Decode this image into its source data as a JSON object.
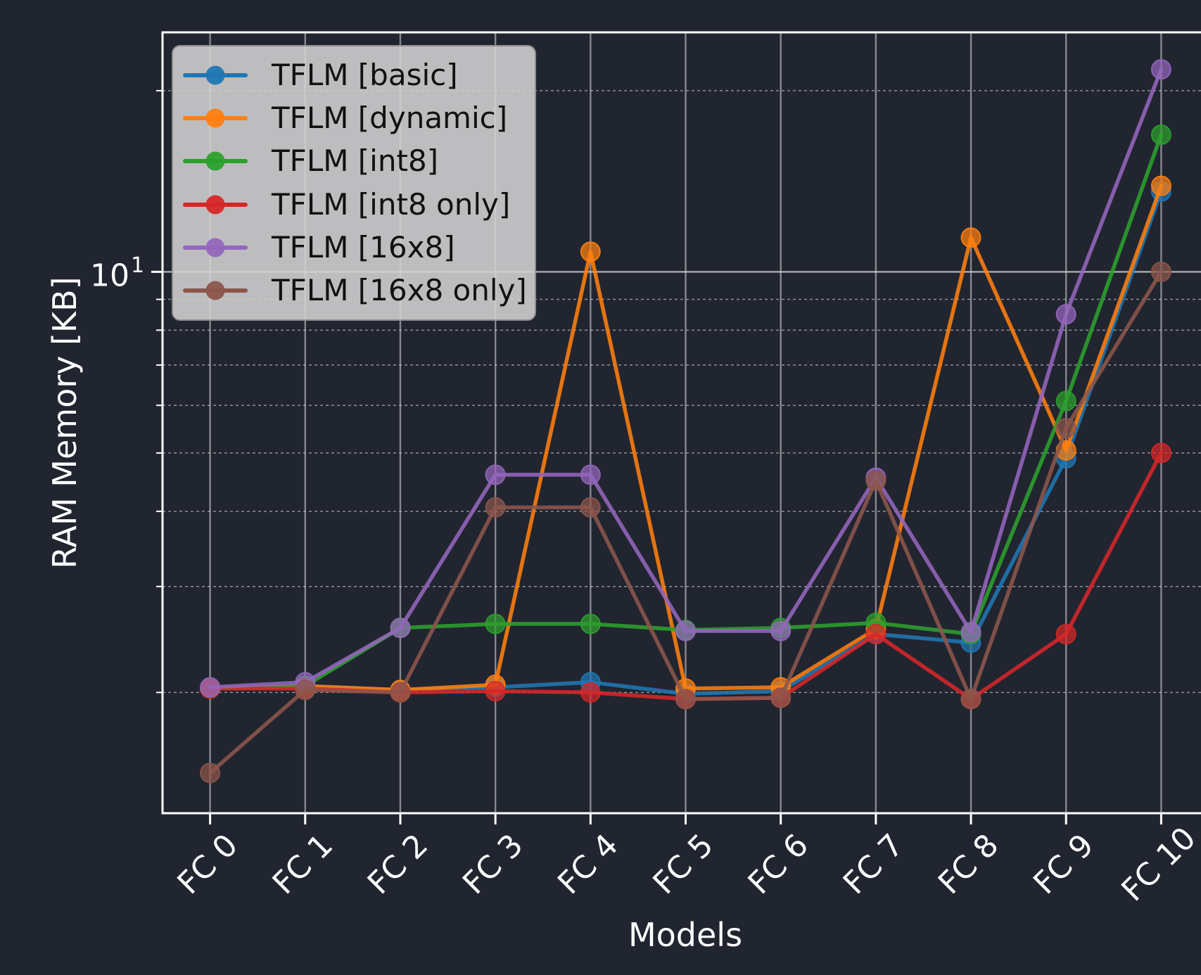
{
  "theme": {
    "background": "#212530",
    "text_color": "#ffffff",
    "grid_color": "#d9d9d9",
    "spine_color": "#ffffff",
    "legend_bg": "rgba(211,211,211,0.88)",
    "legend_text": "#111111",
    "legend_border": "#8f8f8f"
  },
  "chart_data": {
    "type": "line",
    "title": "",
    "xlabel": "Models",
    "ylabel": "RAM Memory [KB]",
    "y_scale": "log",
    "ylim": [
      1.26,
      25.0
    ],
    "y_major_tick": {
      "base": "10",
      "exp": "1",
      "value": 10
    },
    "y_minor_ticks": [
      2,
      3,
      4,
      5,
      6,
      7,
      8,
      9,
      20
    ],
    "grid": {
      "major": "solid",
      "minor": "dashed",
      "vertical": "per-category"
    },
    "legend_position": "upper left",
    "categories": [
      "FC 0",
      "FC 1",
      "FC 2",
      "FC 3",
      "FC 4",
      "FC 5",
      "FC 6",
      "FC 7",
      "FC 8",
      "FC 9",
      "FC 10"
    ],
    "series": [
      {
        "name": "TFLM [basic]",
        "color": "#1f77b4",
        "values": [
          2.03,
          2.05,
          2.02,
          2.04,
          2.08,
          1.99,
          2.01,
          2.5,
          2.42,
          4.9,
          13.6
        ]
      },
      {
        "name": "TFLM [dynamic]",
        "color": "#ff7f0e",
        "values": [
          2.03,
          2.05,
          2.02,
          2.06,
          10.8,
          2.03,
          2.04,
          2.55,
          11.4,
          5.05,
          13.9
        ]
      },
      {
        "name": "TFLM [int8]",
        "color": "#2ca02c",
        "values": [
          2.03,
          2.05,
          2.56,
          2.6,
          2.6,
          2.54,
          2.56,
          2.61,
          2.5,
          6.1,
          16.9
        ]
      },
      {
        "name": "TFLM [int8 only]",
        "color": "#d62728",
        "values": [
          2.03,
          2.03,
          2.0,
          2.01,
          2.0,
          1.95,
          1.96,
          2.5,
          1.95,
          2.5,
          5.0
        ]
      },
      {
        "name": "TFLM [16x8]",
        "color": "#9467bd",
        "values": [
          2.04,
          2.08,
          2.56,
          4.6,
          4.6,
          2.53,
          2.53,
          4.55,
          2.52,
          8.5,
          21.7
        ]
      },
      {
        "name": "TFLM [16x8 only]",
        "color": "#8c564b",
        "values": [
          1.47,
          2.02,
          2.0,
          4.06,
          4.06,
          1.95,
          1.96,
          4.5,
          1.95,
          5.5,
          10.0
        ]
      }
    ]
  }
}
